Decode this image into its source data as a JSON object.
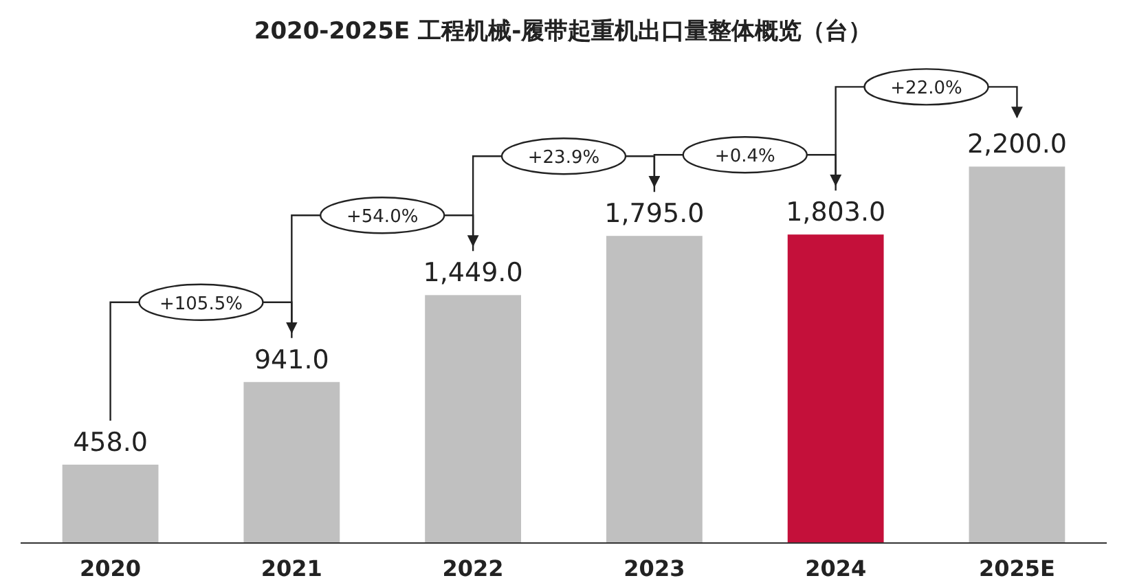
{
  "chart_data": {
    "type": "bar",
    "title": "2020-2025E 工程机械-履带起重机出口量整体概览（台）",
    "categories": [
      "2020",
      "2021",
      "2022",
      "2023",
      "2024",
      "2025E"
    ],
    "values": [
      458.0,
      941.0,
      1449.0,
      1795.0,
      1803.0,
      2200.0
    ],
    "value_labels": [
      "458.0",
      "941.0",
      "1,449.0",
      "1,795.0",
      "1,803.0",
      "2,200.0"
    ],
    "colors": [
      "#c0c0c0",
      "#c0c0c0",
      "#c0c0c0",
      "#c0c0c0",
      "#c4103a",
      "#c0c0c0"
    ],
    "annotations": [
      "+105.5%",
      "+54.0%",
      "+23.9%",
      "+0.4%",
      "+22.0%"
    ],
    "tick_labels": "x"
  }
}
